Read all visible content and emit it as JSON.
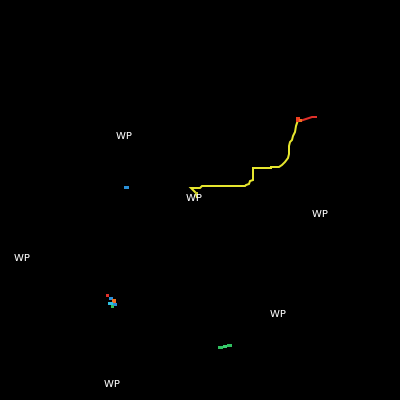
{
  "waypoint_label": "WP",
  "colors": {
    "background": "#000000",
    "label": "#ffffff",
    "trail": "#e6e62e",
    "red_agent": "#e0302a",
    "orange_agent": "#f07020",
    "blue_agent": "#2a8fd6",
    "cyan_agent": "#30c0e0",
    "green_agent": "#30c060"
  },
  "icons": [
    "waypoint-marker",
    "agent-trail",
    "agent-cluster"
  ]
}
